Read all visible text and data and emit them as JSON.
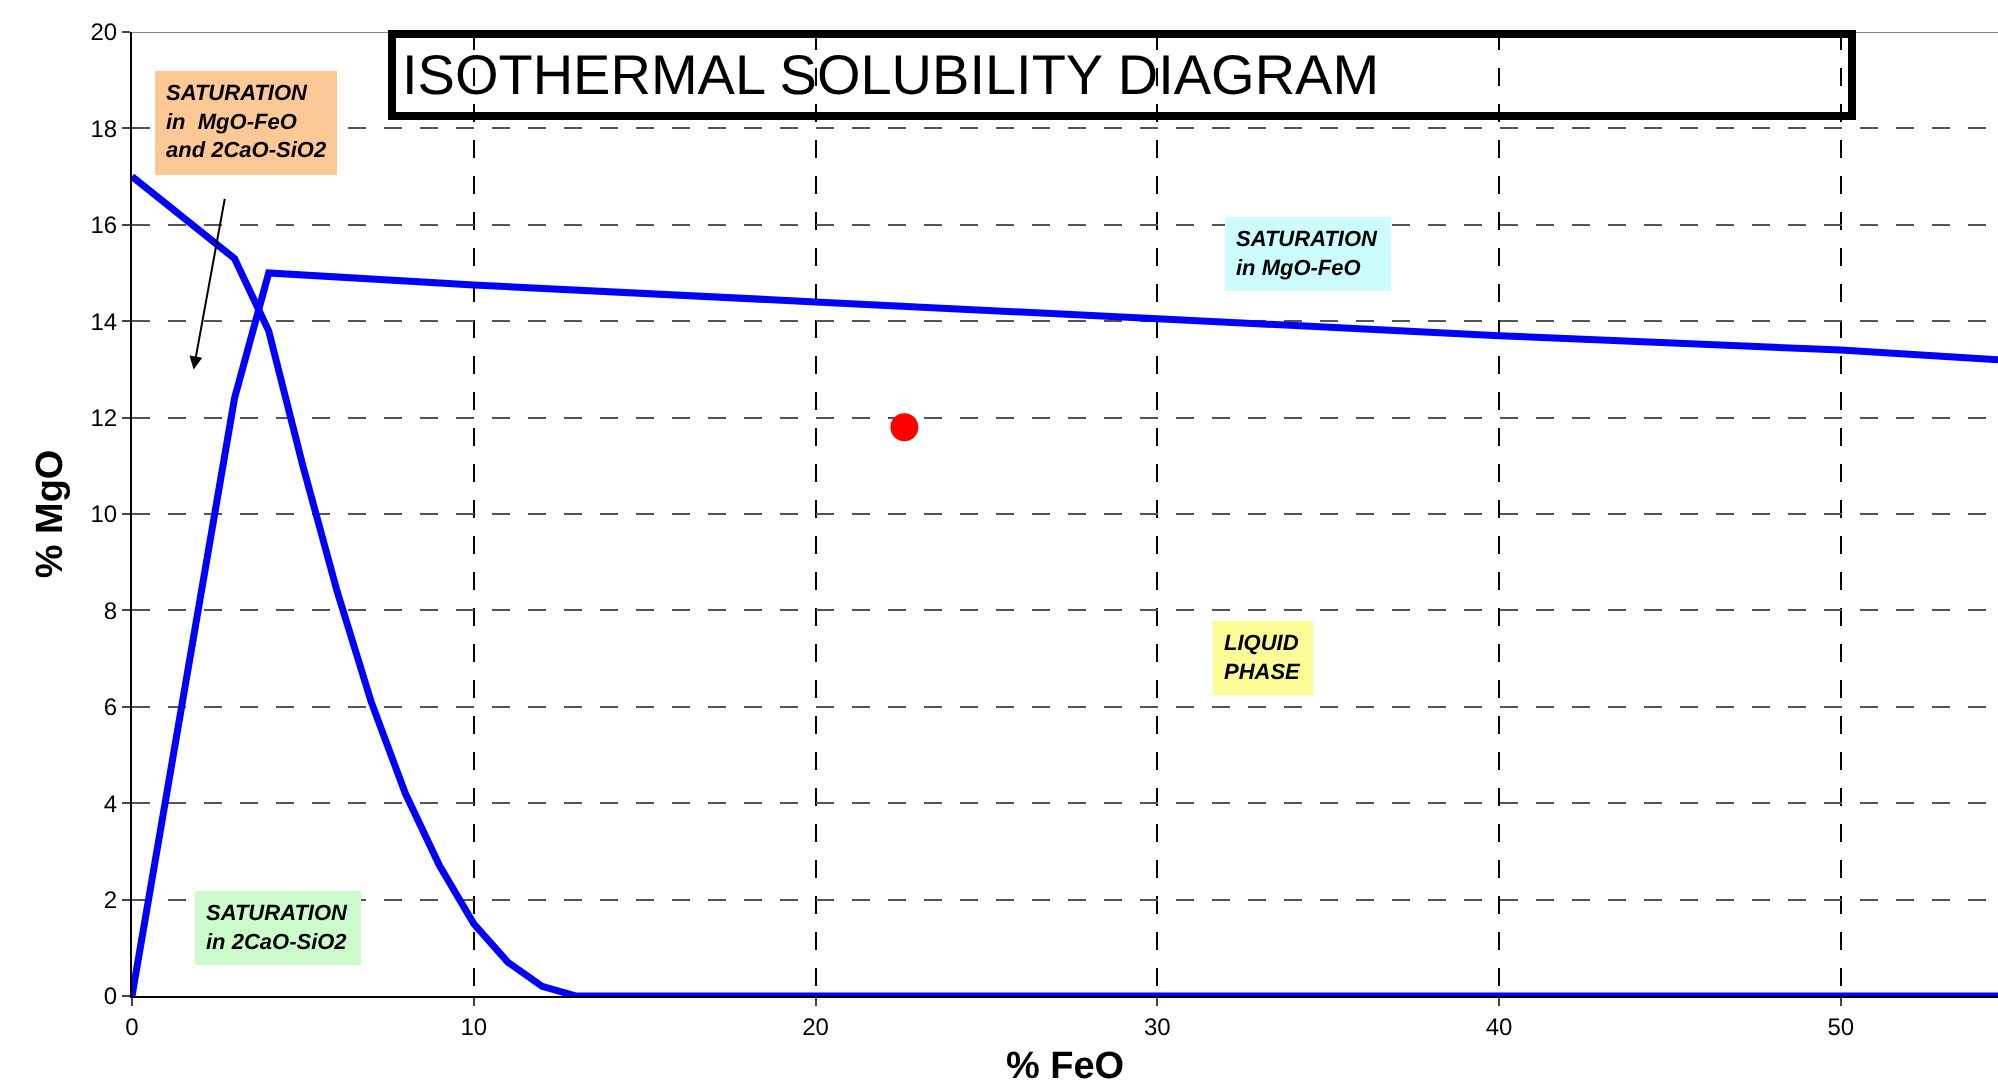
{
  "chart_data": {
    "type": "line",
    "title": "ISOTHERMAL SOLUBILITY DIAGRAM",
    "xlabel": "% FeO",
    "ylabel": "% MgO",
    "series": [
      {
        "color": "#0000ff",
        "x": [
          0,
          3,
          4,
          5,
          6,
          7,
          8,
          9,
          10,
          11,
          12,
          13,
          54.6
        ],
        "values": [
          17,
          15.3,
          13.8,
          11,
          8.4,
          6.1,
          4.2,
          2.7,
          1.5,
          0.7,
          0.2,
          0,
          0
        ]
      },
      {
        "color": "#0000ff",
        "x": [
          0,
          3,
          4,
          10,
          20,
          30,
          40,
          50,
          54.6
        ],
        "values": [
          0,
          12.4,
          15,
          14.75,
          14.4,
          14.05,
          13.7,
          13.4,
          13.2
        ]
      },
      {
        "type": "scatter",
        "color": "#ff0000",
        "marker": "circle",
        "x": [
          22.6
        ],
        "values": [
          11.8
        ]
      }
    ],
    "annotations": [
      "SATURATION\nin  MgO-FeO\nand 2CaO-SiO2",
      "SATURATION\nin MgO-FeO",
      "LIQUID\nPHASE",
      "SATURATION\nin 2CaO-SiO2"
    ],
    "xlim": [
      0,
      54.6
    ],
    "ylim": [
      0,
      20
    ],
    "xticks": [
      0,
      10,
      20,
      30,
      40,
      50
    ],
    "yticks": [
      0,
      2,
      4,
      6,
      8,
      10,
      12,
      14,
      16,
      18,
      20
    ],
    "grid": true,
    "line_style": "solid"
  }
}
